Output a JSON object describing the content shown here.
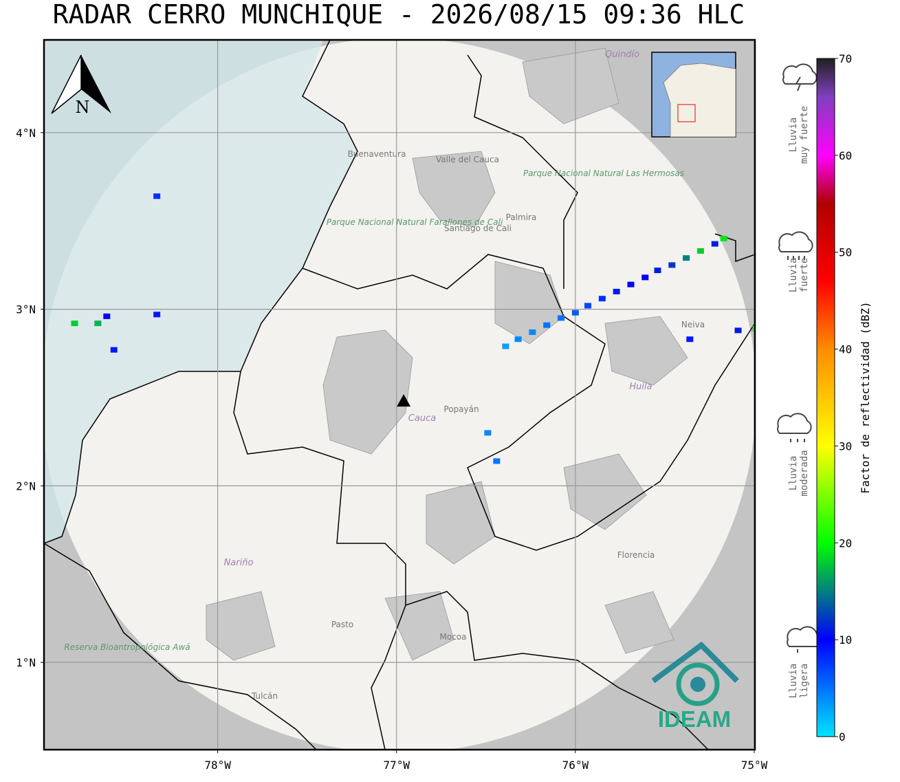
{
  "title": "RADAR CERRO MUNCHIQUE - 2026/08/15 09:36 HLC",
  "map": {
    "xlim": [
      -78.971,
      -74.996
    ],
    "ylim": [
      0.506,
      4.525
    ],
    "xticks": [
      {
        "value": -78,
        "label": "78°W"
      },
      {
        "value": -77,
        "label": "77°W"
      },
      {
        "value": -76,
        "label": "76°W"
      },
      {
        "value": -75,
        "label": "75°W"
      }
    ],
    "yticks": [
      {
        "value": 1,
        "label": "1°N"
      },
      {
        "value": 2,
        "label": "2°N"
      },
      {
        "value": 3,
        "label": "3°N"
      },
      {
        "value": 4,
        "label": "4°N"
      }
    ],
    "grid": true,
    "radar": {
      "lon": -76.96,
      "lat": 2.48
    },
    "north": "N",
    "logo": "IDEAM",
    "places": [
      "Buenaventura",
      "Valle del Cauca",
      "Parque Nacional Natural Farallones de Cali",
      "Santiago de Cali",
      "Palmira",
      "Parque Nacional Natural Las Hermosas",
      "Quindío",
      "Neiva",
      "Huila",
      "Cauca",
      "Popayán",
      "Nariño",
      "Pasto",
      "Mocoa",
      "Florencia",
      "Tulcán",
      "Reserva Bioantropológica Awá"
    ],
    "echoes": [
      {
        "lon": -76.39,
        "lat": 2.79,
        "dbz": 3
      },
      {
        "lon": -76.32,
        "lat": 2.83,
        "dbz": 4
      },
      {
        "lon": -76.24,
        "lat": 2.87,
        "dbz": 4
      },
      {
        "lon": -76.16,
        "lat": 2.91,
        "dbz": 5
      },
      {
        "lon": -76.08,
        "lat": 2.95,
        "dbz": 5
      },
      {
        "lon": -76.0,
        "lat": 2.98,
        "dbz": 6
      },
      {
        "lon": -75.93,
        "lat": 3.02,
        "dbz": 7
      },
      {
        "lon": -75.85,
        "lat": 3.06,
        "dbz": 8
      },
      {
        "lon": -75.77,
        "lat": 3.1,
        "dbz": 9
      },
      {
        "lon": -75.69,
        "lat": 3.14,
        "dbz": 10
      },
      {
        "lon": -75.61,
        "lat": 3.18,
        "dbz": 10
      },
      {
        "lon": -75.54,
        "lat": 3.22,
        "dbz": 11
      },
      {
        "lon": -75.46,
        "lat": 3.25,
        "dbz": 12
      },
      {
        "lon": -75.38,
        "lat": 3.29,
        "dbz": 15
      },
      {
        "lon": -75.3,
        "lat": 3.33,
        "dbz": 18
      },
      {
        "lon": -75.22,
        "lat": 3.37,
        "dbz": 11
      },
      {
        "lon": -75.17,
        "lat": 3.4,
        "dbz": 19
      },
      {
        "lon": -78.62,
        "lat": 2.96,
        "dbz": 10
      },
      {
        "lon": -78.58,
        "lat": 2.77,
        "dbz": 9
      },
      {
        "lon": -78.67,
        "lat": 2.92,
        "dbz": 17
      },
      {
        "lon": -78.34,
        "lat": 3.64,
        "dbz": 8
      },
      {
        "lon": -78.34,
        "lat": 2.97,
        "dbz": 9
      },
      {
        "lon": -78.8,
        "lat": 2.92,
        "dbz": 18
      },
      {
        "lon": -76.49,
        "lat": 2.3,
        "dbz": 4
      },
      {
        "lon": -76.44,
        "lat": 2.14,
        "dbz": 5
      },
      {
        "lon": -75.36,
        "lat": 2.83,
        "dbz": 9
      },
      {
        "lon": -75.09,
        "lat": 2.88,
        "dbz": 11
      },
      {
        "lon": -74.99,
        "lat": 2.89,
        "dbz": 19
      }
    ]
  },
  "colorbar": {
    "label": "Factor de reflectividad (dBZ)",
    "lim": [
      0,
      70
    ],
    "ticks": [
      0,
      10,
      20,
      30,
      40,
      50,
      60,
      70
    ],
    "colorscale": [
      [
        0,
        "#00e5ff"
      ],
      [
        10,
        "#0000ff"
      ],
      [
        20,
        "#00ff00"
      ],
      [
        30,
        "#ffff00"
      ],
      [
        40,
        "#ff8c00"
      ],
      [
        47,
        "#ff0000"
      ],
      [
        55,
        "#b00000"
      ],
      [
        60,
        "#ff00ff"
      ],
      [
        66,
        "#8040c0"
      ],
      [
        70,
        "#202020"
      ]
    ]
  },
  "legend": [
    {
      "lines": [
        "Lluvia",
        "muy fuerte"
      ]
    },
    {
      "lines": [
        "Lluvia",
        "fuerte"
      ]
    },
    {
      "lines": [
        "Lluvia",
        "moderada"
      ]
    },
    {
      "lines": [
        "Lluvia",
        "ligera"
      ]
    }
  ]
}
